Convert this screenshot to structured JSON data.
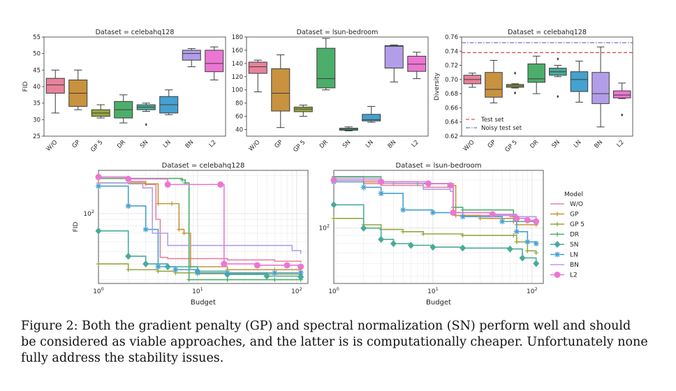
{
  "caption": "Figure 2: Both the gradient penalty (GP) and spectral normalization (SN) perform well and should be considered as viable approaches, and the latter is is computationally cheaper. Unfortunately none fully address the stability issues.",
  "colors": {
    "W/O": "#e8829b",
    "GP": "#c8923f",
    "GP 5": "#95a83e",
    "DR": "#4cae6a",
    "SN": "#48aa9b",
    "LN": "#45a1cf",
    "BN": "#b29ee8",
    "L2": "#ec76d3"
  },
  "chart_data": [
    {
      "type": "box",
      "title": "Dataset = celebahq128",
      "ylabel": "FID",
      "ylim": [
        25,
        55
      ],
      "yticks": [
        25,
        30,
        35,
        40,
        45,
        50,
        55
      ],
      "categories": [
        "W/O",
        "GP",
        "GP 5",
        "DR",
        "SN",
        "LN",
        "BN",
        "L2"
      ],
      "boxes": [
        {
          "min": 32,
          "q1": 38,
          "median": 40.5,
          "q3": 42.5,
          "max": 45
        },
        {
          "min": 33,
          "q1": 34,
          "median": 38,
          "q3": 42,
          "max": 45
        },
        {
          "min": 30.5,
          "q1": 31,
          "median": 32,
          "q3": 33,
          "max": 34.5
        },
        {
          "min": 29,
          "q1": 30.5,
          "median": 33,
          "q3": 35.5,
          "max": 37.5
        },
        {
          "min": 32.5,
          "q1": 33,
          "median": 33.8,
          "q3": 34.5,
          "max": 35,
          "outliers": [
            28.5
          ]
        },
        {
          "min": 31.5,
          "q1": 32,
          "median": 34.5,
          "q3": 37,
          "max": 39
        },
        {
          "min": 46,
          "q1": 48,
          "median": 50,
          "q3": 51,
          "max": 51.5
        },
        {
          "min": 42,
          "q1": 44.5,
          "median": 47,
          "q3": 51,
          "max": 52
        }
      ]
    },
    {
      "type": "box",
      "title": "Dataset = lsun-bedroom",
      "ylabel": "",
      "ylim": [
        30,
        180
      ],
      "yticks": [
        40,
        60,
        80,
        100,
        120,
        140,
        160,
        180
      ],
      "categories": [
        "W/O",
        "GP",
        "GP 5",
        "DR",
        "SN",
        "LN",
        "BN",
        "L2"
      ],
      "boxes": [
        {
          "min": 97,
          "q1": 125,
          "median": 135,
          "q3": 142,
          "max": 145
        },
        {
          "min": 43,
          "q1": 68,
          "median": 95,
          "q3": 132,
          "max": 153
        },
        {
          "min": 60,
          "q1": 67,
          "median": 71,
          "q3": 74,
          "max": 77
        },
        {
          "min": 100,
          "q1": 103,
          "median": 117,
          "q3": 163,
          "max": 178
        },
        {
          "min": 38,
          "q1": 39,
          "median": 40.5,
          "q3": 42,
          "max": 44
        },
        {
          "min": 51,
          "q1": 53,
          "median": 55,
          "q3": 63,
          "max": 75
        },
        {
          "min": 112,
          "q1": 133,
          "median": 166,
          "q3": 167,
          "max": 168
        },
        {
          "min": 117,
          "q1": 128,
          "median": 139,
          "q3": 151,
          "max": 157
        }
      ]
    },
    {
      "type": "box",
      "title": "Dataset = celebahq128",
      "ylabel": "Diversity",
      "ylim": [
        0.62,
        0.76
      ],
      "yticks": [
        0.62,
        0.64,
        0.66,
        0.68,
        0.7,
        0.72,
        0.74,
        0.76
      ],
      "categories": [
        "W/O",
        "GP",
        "GP 5",
        "DR",
        "SN",
        "LN",
        "BN",
        "L2"
      ],
      "boxes": [
        {
          "min": 0.689,
          "q1": 0.694,
          "median": 0.7,
          "q3": 0.706,
          "max": 0.709
        },
        {
          "min": 0.667,
          "q1": 0.675,
          "median": 0.686,
          "q3": 0.71,
          "max": 0.727
        },
        {
          "min": 0.688,
          "q1": 0.689,
          "median": 0.691,
          "q3": 0.693,
          "max": 0.694,
          "outliers": [
            0.709,
            0.681
          ]
        },
        {
          "min": 0.68,
          "q1": 0.696,
          "median": 0.701,
          "q3": 0.722,
          "max": 0.733
        },
        {
          "min": 0.704,
          "q1": 0.706,
          "median": 0.711,
          "q3": 0.716,
          "max": 0.72,
          "outliers": [
            0.729,
            0.676
          ]
        },
        {
          "min": 0.668,
          "q1": 0.683,
          "median": 0.7,
          "q3": 0.711,
          "max": 0.726
        },
        {
          "min": 0.633,
          "q1": 0.666,
          "median": 0.68,
          "q3": 0.71,
          "max": 0.746
        },
        {
          "min": 0.673,
          "q1": 0.674,
          "median": 0.678,
          "q3": 0.684,
          "max": 0.695,
          "outliers": [
            0.65
          ]
        }
      ],
      "hlines": [
        {
          "label": "Test set",
          "value": 0.738,
          "color": "#d03030",
          "dash": "dashed"
        },
        {
          "label": "Noisy test set",
          "value": 0.752,
          "color": "#4d4fb8",
          "dash": "dashdot"
        }
      ],
      "legend_position": "bottom-left"
    },
    {
      "type": "line",
      "title": "Dataset = celebahq128",
      "xlabel": "Budget",
      "ylabel": "FID",
      "xscale": "log",
      "yscale": "log",
      "xlim": [
        1,
        130
      ],
      "ylim": [
        28,
        220
      ],
      "xticks": [
        1,
        10,
        100
      ],
      "yticks": [
        100
      ],
      "series": [
        {
          "name": "W/O",
          "points": [
            [
              1,
              190
            ],
            [
              2,
              180
            ],
            [
              3,
              170
            ],
            [
              3.8,
              90
            ],
            [
              4.2,
              45
            ],
            [
              5,
              44
            ],
            [
              7,
              44
            ],
            [
              20,
              43
            ],
            [
              60,
              42
            ],
            [
              110,
              41
            ]
          ]
        },
        {
          "name": "GP",
          "points": [
            [
              1,
              175
            ],
            [
              3,
              172
            ],
            [
              4,
              120
            ],
            [
              5.5,
              120
            ],
            [
              6.5,
              75
            ],
            [
              7.3,
              70
            ],
            [
              8.5,
              38
            ],
            [
              20,
              36
            ],
            [
              60,
              36
            ],
            [
              110,
              35
            ]
          ]
        },
        {
          "name": "GP 5",
          "points": [
            [
              1,
              40
            ],
            [
              2,
              36
            ],
            [
              4,
              35
            ],
            [
              6,
              34
            ],
            [
              10,
              33.5
            ],
            [
              20,
              33.5
            ],
            [
              50,
              33.2
            ],
            [
              110,
              33
            ]
          ]
        },
        {
          "name": "DR",
          "points": [
            [
              1,
              190
            ],
            [
              7,
              185
            ],
            [
              7.5,
              175
            ],
            [
              8.2,
              30
            ],
            [
              20,
              30
            ],
            [
              60,
              30
            ],
            [
              110,
              30
            ]
          ]
        },
        {
          "name": "SN",
          "points": [
            [
              1,
              73
            ],
            [
              2,
              46
            ],
            [
              3,
              40
            ],
            [
              5,
              38
            ],
            [
              10,
              35
            ],
            [
              20,
              33
            ],
            [
              50,
              32
            ],
            [
              110,
              31.5
            ]
          ]
        },
        {
          "name": "LN",
          "points": [
            [
              1,
              165
            ],
            [
              2,
              115
            ],
            [
              3,
              75
            ],
            [
              4,
              38
            ],
            [
              6,
              36
            ],
            [
              10,
              34
            ],
            [
              20,
              34
            ],
            [
              60,
              34
            ],
            [
              110,
              34
            ]
          ]
        },
        {
          "name": "BN",
          "points": [
            [
              1,
              175
            ],
            [
              2,
              172
            ],
            [
              2.8,
              160
            ],
            [
              3.5,
              70
            ],
            [
              5,
              56
            ],
            [
              20,
              56
            ],
            [
              70,
              56
            ],
            [
              90,
              51
            ],
            [
              110,
              48
            ]
          ]
        },
        {
          "name": "L2",
          "points": [
            [
              1,
              195
            ],
            [
              2,
              188
            ],
            [
              5,
              170
            ],
            [
              17,
              170
            ],
            [
              18.5,
              40
            ],
            [
              40,
              39
            ],
            [
              80,
              39
            ],
            [
              110,
              38
            ]
          ]
        }
      ]
    },
    {
      "type": "line",
      "title": "Dataset = lsun-bedroom",
      "xlabel": "Budget",
      "ylabel": "",
      "xscale": "log",
      "yscale": "log",
      "xlim": [
        1,
        130
      ],
      "ylim": [
        45,
        230
      ],
      "xticks": [
        1,
        10,
        100
      ],
      "yticks": [
        100
      ],
      "series": [
        {
          "name": "W/O",
          "points": [
            [
              1,
              210
            ],
            [
              2,
              190
            ],
            [
              3,
              185
            ],
            [
              8,
              180
            ],
            [
              15,
              180
            ],
            [
              16,
              125
            ],
            [
              20,
              120
            ],
            [
              60,
              118
            ],
            [
              110,
              115
            ]
          ]
        },
        {
          "name": "GP",
          "points": [
            [
              1,
              200
            ],
            [
              2,
              195
            ],
            [
              4,
              190
            ],
            [
              16,
              185
            ],
            [
              17,
              120
            ],
            [
              30,
              115
            ],
            [
              65,
              110
            ],
            [
              70,
              105
            ],
            [
              110,
              105
            ]
          ]
        },
        {
          "name": "GP 5",
          "points": [
            [
              1,
              115
            ],
            [
              2,
              105
            ],
            [
              3,
              98
            ],
            [
              5,
              95
            ],
            [
              8,
              92
            ],
            [
              20,
              90
            ],
            [
              65,
              90
            ],
            [
              70,
              82
            ],
            [
              90,
              72
            ],
            [
              110,
              70
            ]
          ]
        },
        {
          "name": "DR",
          "points": [
            [
              1,
              210
            ],
            [
              3,
              195
            ],
            [
              7,
              190
            ],
            [
              15,
              185
            ],
            [
              16,
              135
            ],
            [
              20,
              130
            ],
            [
              65,
              120
            ],
            [
              70,
              110
            ],
            [
              110,
              108
            ]
          ]
        },
        {
          "name": "SN",
          "points": [
            [
              1,
              140
            ],
            [
              2,
              100
            ],
            [
              3,
              85
            ],
            [
              4,
              80
            ],
            [
              6,
              78
            ],
            [
              10,
              76
            ],
            [
              20,
              75
            ],
            [
              60,
              74
            ],
            [
              80,
              65
            ],
            [
              110,
              60
            ]
          ]
        },
        {
          "name": "LN",
          "points": [
            [
              1,
              195
            ],
            [
              2,
              180
            ],
            [
              3,
              165
            ],
            [
              5,
              130
            ],
            [
              10,
              125
            ],
            [
              20,
              118
            ],
            [
              50,
              110
            ],
            [
              70,
              95
            ],
            [
              90,
              82
            ],
            [
              110,
              80
            ]
          ]
        },
        {
          "name": "BN",
          "points": [
            [
              1,
              205
            ],
            [
              3,
              190
            ],
            [
              8,
              175
            ],
            [
              15,
              170
            ],
            [
              16,
              125
            ],
            [
              40,
              120
            ],
            [
              70,
              118
            ],
            [
              110,
              118
            ]
          ]
        },
        {
          "name": "L2",
          "points": [
            [
              1,
              200
            ],
            [
              3,
              195
            ],
            [
              9,
              190
            ],
            [
              15,
              185
            ],
            [
              16,
              125
            ],
            [
              40,
              122
            ],
            [
              70,
              115
            ],
            [
              90,
              112
            ],
            [
              110,
              110
            ]
          ]
        }
      ],
      "legend_title": "Model",
      "legend_position": "right"
    }
  ]
}
